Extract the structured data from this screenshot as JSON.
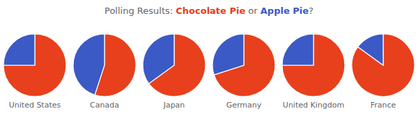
{
  "chart_data": {
    "type": "pie",
    "title": "Polling Results: Chocolate Pie or Apple Pie?",
    "categories": [
      "United States",
      "Canada",
      "Japan",
      "Germany",
      "United Kingdom",
      "France"
    ],
    "series": [
      {
        "name": "Chocolate Pie",
        "color": "#E8401C",
        "values": [
          0.75,
          0.55,
          0.65,
          0.7,
          0.75,
          0.85
        ]
      },
      {
        "name": "Apple Pie",
        "color": "#3B5AC6",
        "values": [
          0.25,
          0.45,
          0.35,
          0.3,
          0.25,
          0.15
        ]
      }
    ]
  }
}
